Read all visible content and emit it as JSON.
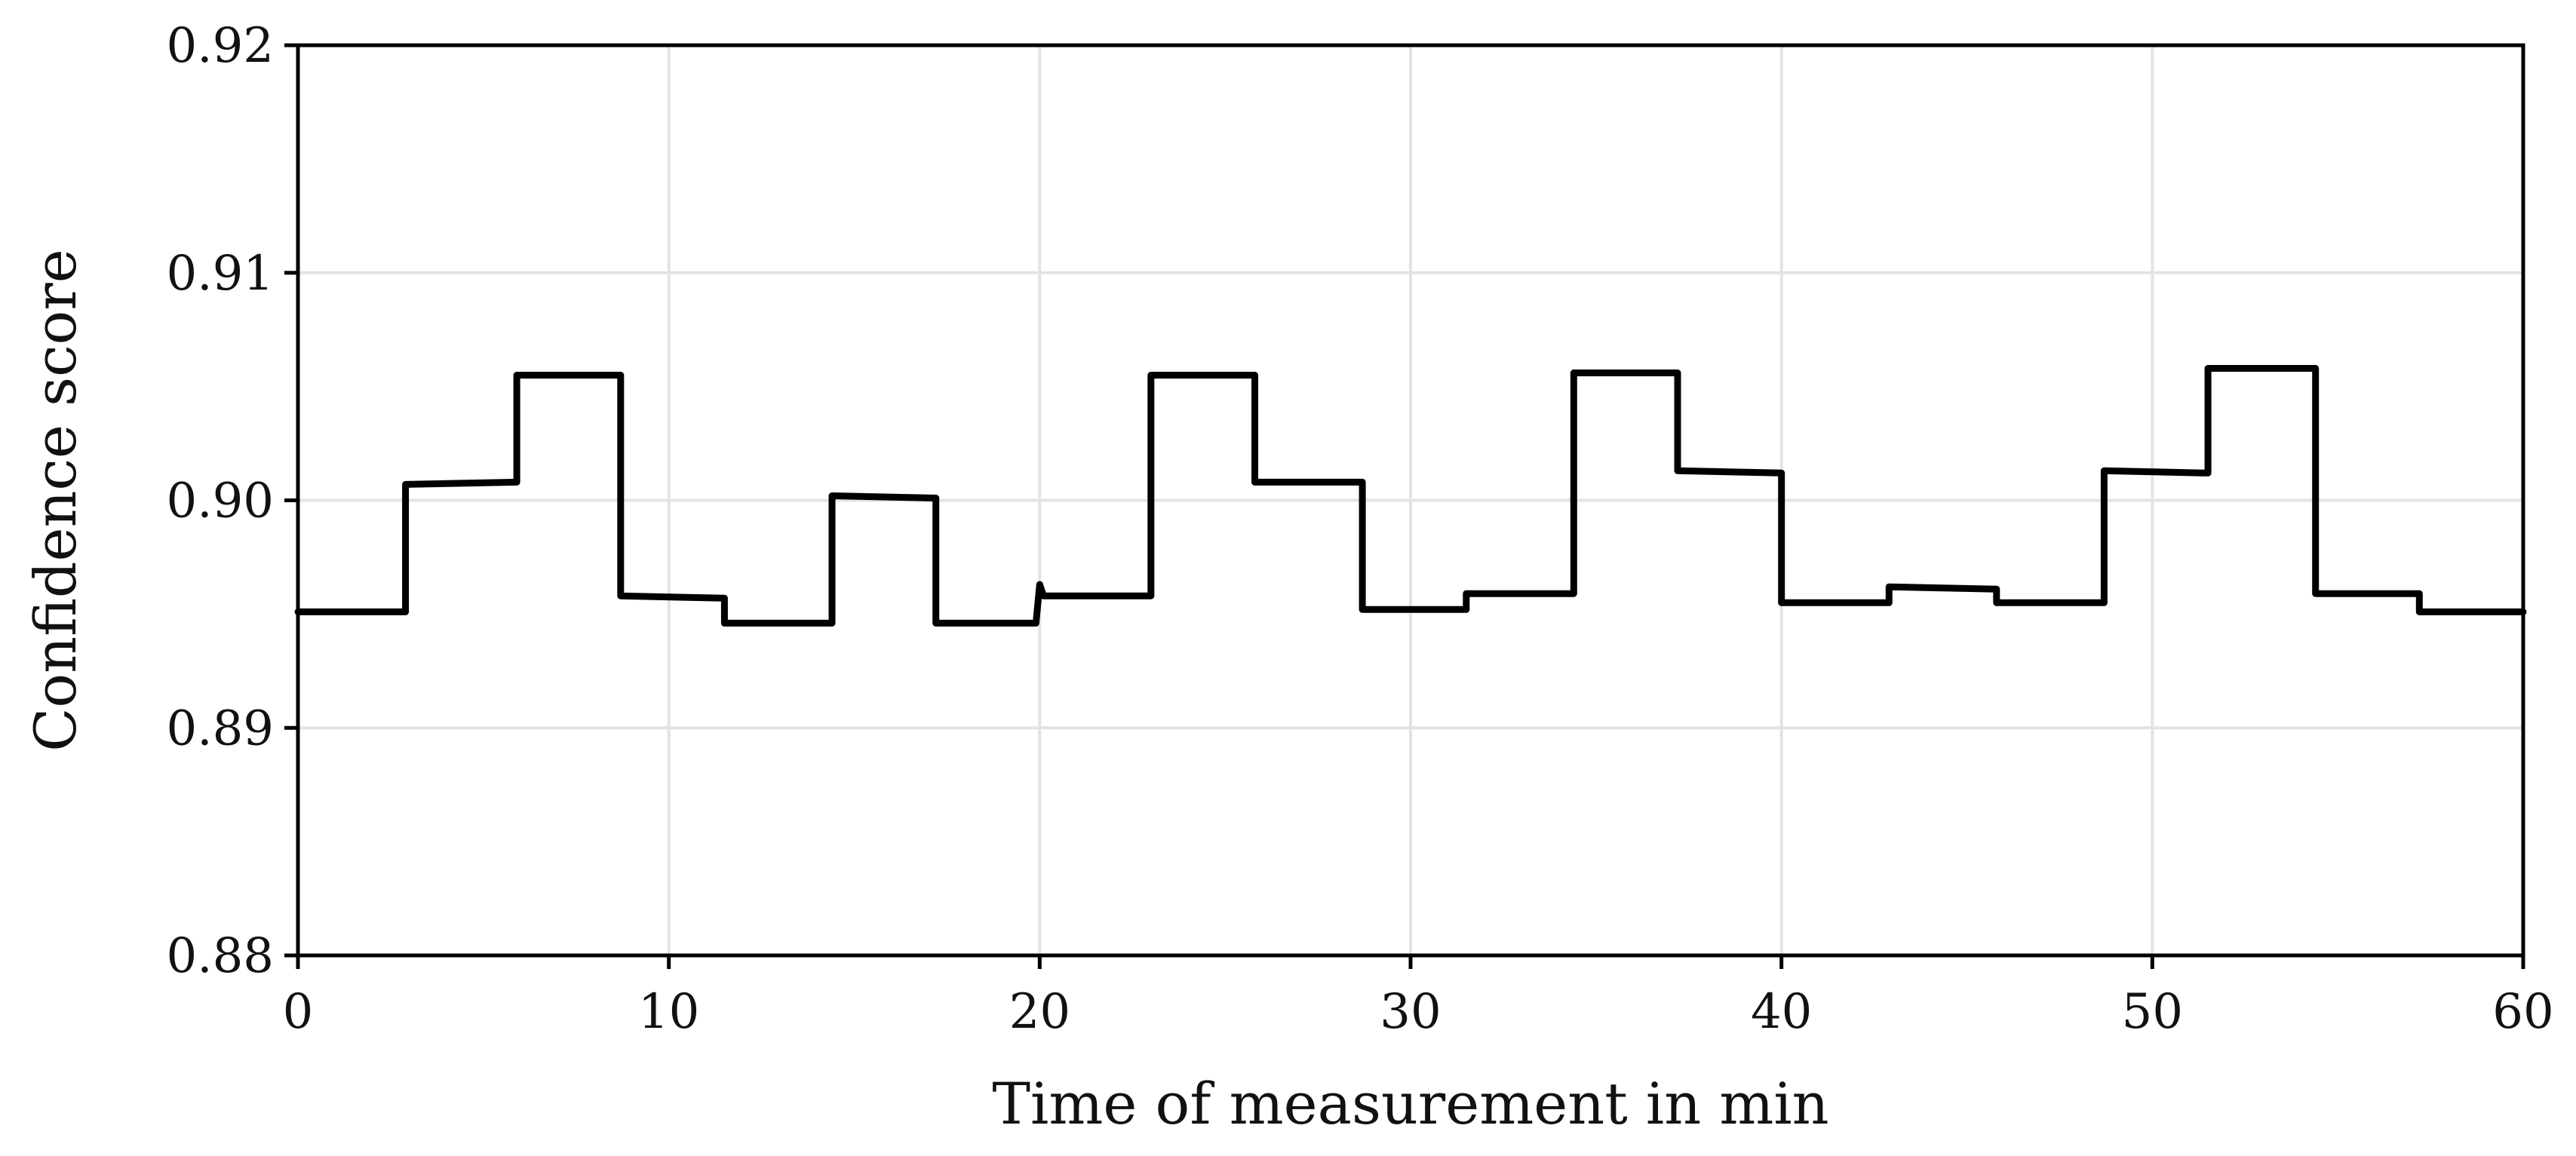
{
  "chart_data": {
    "type": "line",
    "title": "",
    "xlabel": "Time of measurement in min",
    "ylabel": "Confidence score",
    "xlim": [
      0,
      60
    ],
    "ylim": [
      0.88,
      0.92
    ],
    "x_ticks": [
      0,
      10,
      20,
      30,
      40,
      50,
      60
    ],
    "x_tick_labels": [
      "0",
      "10",
      "20",
      "30",
      "40",
      "50",
      "60"
    ],
    "y_ticks": [
      0.88,
      0.89,
      0.9,
      0.91,
      0.92
    ],
    "y_tick_labels": [
      "0.88",
      "0.89",
      "0.90",
      "0.91",
      "0.92"
    ],
    "grid": true,
    "legend": "none",
    "line_color": "#000000",
    "grid_color": "#e3e3e3",
    "series": [
      {
        "x": [
          0,
          2.9,
          2.9,
          5.9,
          5.9,
          8.7,
          8.7,
          11.5,
          11.5,
          14.4,
          14.4,
          17.2,
          17.2,
          19.9,
          20.0,
          20.1,
          23.0,
          23.0,
          25.8,
          25.8,
          28.7,
          28.7,
          31.5,
          31.5,
          34.4,
          34.4,
          37.2,
          37.2,
          40.0,
          40.0,
          42.9,
          42.9,
          45.8,
          45.8,
          48.7,
          48.7,
          51.5,
          51.5,
          54.4,
          54.4,
          57.2,
          57.2,
          60
        ],
        "y": [
          0.8951,
          0.8951,
          0.9007,
          0.9008,
          0.9055,
          0.9055,
          0.8958,
          0.8957,
          0.8946,
          0.8946,
          0.9002,
          0.9001,
          0.8946,
          0.8946,
          0.8963,
          0.8958,
          0.8958,
          0.9055,
          0.9055,
          0.9008,
          0.9008,
          0.8952,
          0.8952,
          0.8959,
          0.8959,
          0.9056,
          0.9056,
          0.9013,
          0.9012,
          0.8955,
          0.8955,
          0.8962,
          0.8961,
          0.8955,
          0.8955,
          0.9013,
          0.9012,
          0.9058,
          0.9058,
          0.8959,
          0.8959,
          0.8951,
          0.8951
        ]
      }
    ]
  }
}
